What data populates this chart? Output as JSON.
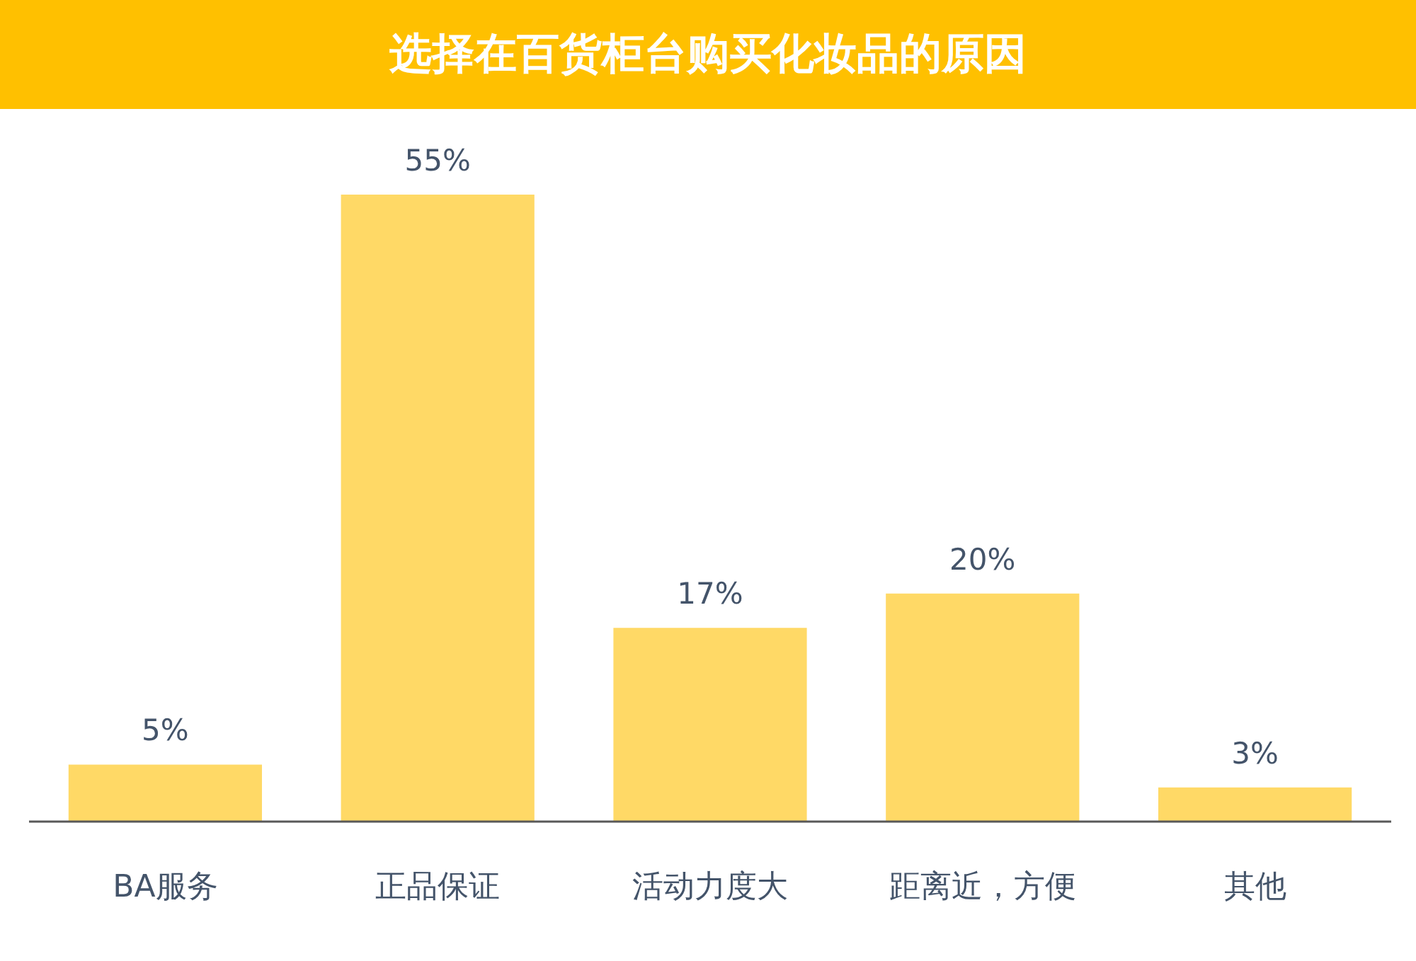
{
  "chart_data": {
    "type": "bar",
    "title": "选择在百货柜台购买化妆品的原因",
    "categories": [
      "BA服务",
      "正品保证",
      "活动力度大",
      "距离近，方便",
      "其他"
    ],
    "values": [
      5,
      55,
      17,
      20,
      3
    ],
    "value_labels": [
      "5%",
      "55%",
      "17%",
      "20%",
      "3%"
    ],
    "color": "#ffd966"
  }
}
